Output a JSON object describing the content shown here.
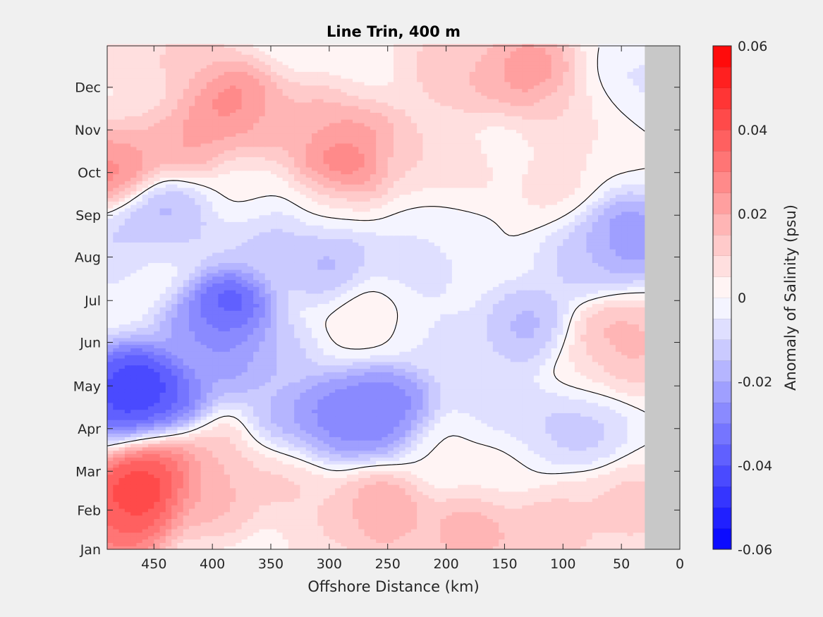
{
  "chart_data": {
    "type": "heatmap",
    "subtype": "filled-contour",
    "title": "Line Trin, 400 m",
    "xlabel": "Offshore Distance (km)",
    "ylabel": "",
    "xlim": [
      490,
      0
    ],
    "x_reversed": true,
    "x_ticks": [
      450,
      400,
      350,
      300,
      250,
      200,
      150,
      100,
      50,
      0
    ],
    "y_ticks": [
      "Jan",
      "Feb",
      "Mar",
      "Apr",
      "May",
      "Jun",
      "Jul",
      "Aug",
      "Sep",
      "Oct",
      "Nov",
      "Dec"
    ],
    "y_tick_values": [
      1,
      1.92,
      2.83,
      3.83,
      4.83,
      5.85,
      6.83,
      7.85,
      8.83,
      9.83,
      10.83,
      11.83
    ],
    "ylim": [
      1,
      12.8
    ],
    "no_data_region_km": [
      30,
      0
    ],
    "no_data_color": "#c8c8c8",
    "zero_contour_color": "#000000",
    "colorbar": {
      "label": "Anomaly of Salinity (psu)",
      "range": [
        -0.06,
        0.06
      ],
      "step": 0.005,
      "ticks": [
        "0.06",
        "0.04",
        "0.02",
        "0",
        "-0.02",
        "-0.04",
        "-0.06"
      ],
      "tick_values": [
        0.06,
        0.04,
        0.02,
        0,
        -0.02,
        -0.04,
        -0.06
      ],
      "negative_color": "#0000ff",
      "positive_color": "#ff0000",
      "zero_color": "#ffffff"
    },
    "features": [
      {
        "x": 462,
        "y": 4.8,
        "v": -0.055
      },
      {
        "x": 440,
        "y": 4.4,
        "v": -0.04
      },
      {
        "x": 480,
        "y": 4.6,
        "v": -0.045
      },
      {
        "x": 390,
        "y": 6.7,
        "v": -0.05
      },
      {
        "x": 380,
        "y": 5.6,
        "v": -0.03
      },
      {
        "x": 410,
        "y": 6.2,
        "v": -0.025
      },
      {
        "x": 440,
        "y": 8.8,
        "v": -0.022
      },
      {
        "x": 470,
        "y": 8.0,
        "v": -0.015
      },
      {
        "x": 450,
        "y": 7.6,
        "v": 0.003
      },
      {
        "x": 420,
        "y": 8.2,
        "v": -0.01
      },
      {
        "x": 300,
        "y": 4.1,
        "v": -0.035
      },
      {
        "x": 260,
        "y": 4.2,
        "v": -0.035
      },
      {
        "x": 245,
        "y": 4.4,
        "v": -0.03
      },
      {
        "x": 330,
        "y": 3.9,
        "v": -0.022
      },
      {
        "x": 300,
        "y": 7.8,
        "v": -0.02
      },
      {
        "x": 350,
        "y": 8.2,
        "v": -0.015
      },
      {
        "x": 230,
        "y": 7.6,
        "v": -0.01
      },
      {
        "x": 260,
        "y": 6.5,
        "v": 0.006
      },
      {
        "x": 185,
        "y": 5.5,
        "v": -0.01
      },
      {
        "x": 130,
        "y": 6.2,
        "v": -0.02
      },
      {
        "x": 120,
        "y": 3.8,
        "v": -0.012
      },
      {
        "x": 85,
        "y": 3.9,
        "v": -0.015
      },
      {
        "x": 45,
        "y": 8.3,
        "v": -0.03
      },
      {
        "x": 80,
        "y": 7.8,
        "v": -0.015
      },
      {
        "x": 38,
        "y": 11.7,
        "v": -0.008
      },
      {
        "x": 60,
        "y": 5.9,
        "v": 0.02
      },
      {
        "x": 40,
        "y": 5.7,
        "v": 0.018
      },
      {
        "x": 80,
        "y": 5.2,
        "v": 0.005
      },
      {
        "x": 465,
        "y": 2.3,
        "v": 0.055
      },
      {
        "x": 440,
        "y": 2.9,
        "v": 0.045
      },
      {
        "x": 480,
        "y": 1.6,
        "v": 0.04
      },
      {
        "x": 400,
        "y": 2.2,
        "v": 0.02
      },
      {
        "x": 400,
        "y": 3.2,
        "v": 0.015
      },
      {
        "x": 340,
        "y": 2.8,
        "v": 0.015
      },
      {
        "x": 255,
        "y": 1.9,
        "v": 0.025
      },
      {
        "x": 300,
        "y": 1.6,
        "v": 0.012
      },
      {
        "x": 180,
        "y": 1.4,
        "v": 0.022
      },
      {
        "x": 120,
        "y": 1.3,
        "v": 0.018
      },
      {
        "x": 90,
        "y": 1.8,
        "v": 0.012
      },
      {
        "x": 40,
        "y": 2.0,
        "v": 0.015
      },
      {
        "x": 290,
        "y": 10.0,
        "v": 0.04
      },
      {
        "x": 270,
        "y": 10.8,
        "v": 0.025
      },
      {
        "x": 310,
        "y": 11.0,
        "v": 0.02
      },
      {
        "x": 385,
        "y": 11.5,
        "v": 0.035
      },
      {
        "x": 360,
        "y": 10.9,
        "v": 0.02
      },
      {
        "x": 420,
        "y": 10.6,
        "v": 0.025
      },
      {
        "x": 470,
        "y": 10.6,
        "v": 0.02
      },
      {
        "x": 487,
        "y": 10.0,
        "v": 0.035
      },
      {
        "x": 420,
        "y": 12.4,
        "v": 0.015
      },
      {
        "x": 470,
        "y": 12.2,
        "v": 0.01
      },
      {
        "x": 480,
        "y": 11.5,
        "v": 0.002
      },
      {
        "x": 130,
        "y": 12.2,
        "v": 0.03
      },
      {
        "x": 170,
        "y": 12.0,
        "v": 0.018
      },
      {
        "x": 210,
        "y": 12.3,
        "v": 0.015
      },
      {
        "x": 100,
        "y": 11.2,
        "v": 0.012
      },
      {
        "x": 260,
        "y": 12.1,
        "v": 0.003
      },
      {
        "x": 60,
        "y": 11.0,
        "v": 0.005
      },
      {
        "x": 230,
        "y": 10.2,
        "v": 0.012
      },
      {
        "x": 160,
        "y": 10.3,
        "v": 0.003
      },
      {
        "x": 190,
        "y": 9.9,
        "v": 0.012
      },
      {
        "x": 110,
        "y": 9.6,
        "v": 0.008
      },
      {
        "x": 370,
        "y": 9.4,
        "v": 0.002
      },
      {
        "x": 300,
        "y": 9.1,
        "v": 0.002
      },
      {
        "x": 200,
        "y": 8.9,
        "v": -0.003
      },
      {
        "x": 200,
        "y": 3.4,
        "v": 0.002
      },
      {
        "x": 150,
        "y": 3.0,
        "v": 0.004
      },
      {
        "x": 350,
        "y": 5.4,
        "v": -0.015
      },
      {
        "x": 220,
        "y": 6.2,
        "v": -0.006
      },
      {
        "x": 160,
        "y": 4.4,
        "v": -0.01
      }
    ]
  }
}
